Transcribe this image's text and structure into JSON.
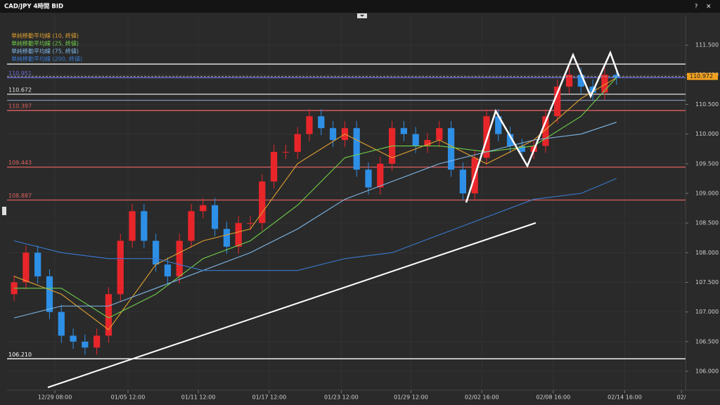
{
  "chart_data": {
    "type": "candlestick",
    "title": "CAD/JPY 4時間 BID",
    "x": [
      0,
      1,
      2,
      3,
      4,
      5,
      6,
      7,
      8,
      9,
      10,
      11,
      12,
      13,
      14,
      15,
      16,
      17,
      18,
      19,
      20,
      21,
      22,
      23,
      24,
      25,
      26,
      27,
      28,
      29,
      30,
      31,
      32,
      33,
      34,
      35,
      36,
      37,
      38,
      39,
      40,
      41,
      42,
      43,
      44,
      45,
      46,
      47,
      48,
      49,
      50,
      51
    ],
    "open": [
      107.3,
      107.5,
      108.0,
      107.6,
      107.0,
      106.6,
      106.5,
      106.4,
      106.6,
      107.3,
      108.2,
      108.7,
      108.2,
      107.8,
      107.6,
      108.2,
      108.7,
      108.8,
      108.4,
      108.1,
      108.5,
      108.5,
      109.2,
      109.7,
      109.7,
      110.0,
      110.3,
      110.1,
      109.9,
      110.1,
      109.4,
      109.1,
      109.5,
      110.1,
      110.0,
      109.8,
      109.9,
      110.1,
      109.4,
      109.0,
      109.6,
      110.3,
      110.0,
      109.8,
      109.7,
      109.8,
      110.3,
      110.8,
      111.0,
      110.8,
      110.7,
      111.0
    ],
    "high": [
      107.62,
      108.12,
      108.12,
      107.72,
      107.12,
      106.72,
      106.62,
      106.72,
      107.42,
      108.32,
      108.82,
      108.82,
      108.32,
      107.92,
      108.32,
      108.82,
      108.92,
      108.92,
      108.52,
      108.62,
      108.62,
      109.32,
      109.82,
      109.82,
      110.12,
      110.42,
      110.42,
      110.22,
      110.22,
      110.22,
      109.52,
      109.62,
      110.22,
      110.22,
      110.12,
      110.02,
      110.22,
      110.22,
      109.52,
      109.72,
      110.42,
      110.42,
      110.12,
      109.92,
      109.92,
      110.42,
      110.92,
      111.12,
      111.12,
      110.92,
      111.12,
      111.12
    ],
    "low": [
      107.18,
      107.38,
      107.48,
      106.88,
      106.48,
      106.38,
      106.28,
      106.28,
      106.48,
      107.18,
      108.08,
      108.08,
      107.68,
      107.48,
      107.48,
      108.08,
      108.58,
      108.28,
      107.98,
      107.98,
      108.38,
      108.38,
      109.08,
      109.58,
      109.58,
      109.88,
      109.98,
      109.78,
      109.78,
      109.28,
      108.98,
      108.98,
      109.38,
      109.88,
      109.68,
      109.68,
      109.78,
      109.28,
      108.88,
      108.88,
      109.48,
      109.88,
      109.68,
      109.58,
      109.58,
      109.68,
      110.18,
      110.68,
      110.68,
      110.58,
      110.58,
      110.83
    ],
    "close": [
      107.5,
      108.0,
      107.6,
      107.0,
      106.6,
      106.5,
      106.4,
      106.6,
      107.3,
      108.2,
      108.7,
      108.2,
      107.8,
      107.6,
      108.2,
      108.7,
      108.8,
      108.4,
      108.1,
      108.5,
      108.5,
      109.2,
      109.7,
      109.7,
      110.0,
      110.3,
      110.1,
      109.9,
      110.1,
      109.4,
      109.1,
      109.5,
      110.1,
      110.0,
      109.8,
      109.9,
      110.1,
      109.4,
      109.0,
      109.6,
      110.3,
      110.0,
      109.8,
      109.7,
      109.8,
      110.3,
      110.8,
      111.0,
      110.8,
      110.7,
      111.0,
      110.95
    ],
    "up_color": "#e8262a",
    "down_color": "#2e8fe6",
    "series": [
      {
        "name": "単純移動平均線 (10, 終値)",
        "color": "#e0a030",
        "x": [
          0,
          4,
          8,
          12,
          16,
          20,
          24,
          28,
          32,
          36,
          40,
          44,
          48,
          51
        ],
        "values": [
          107.6,
          107.3,
          106.7,
          107.8,
          108.2,
          108.4,
          109.5,
          110.0,
          109.6,
          109.9,
          109.5,
          109.9,
          110.6,
          110.95
        ]
      },
      {
        "name": "単純移動平均線 (25, 終値)",
        "color": "#6fcf4a",
        "x": [
          0,
          4,
          8,
          12,
          16,
          20,
          24,
          28,
          32,
          36,
          40,
          44,
          48,
          51
        ],
        "values": [
          107.4,
          107.4,
          106.9,
          107.3,
          107.9,
          108.2,
          108.8,
          109.6,
          109.8,
          109.8,
          109.7,
          109.8,
          110.3,
          110.95
        ]
      },
      {
        "name": "単純移動平均線 (75, 終値)",
        "color": "#7fb8e8",
        "x": [
          0,
          4,
          8,
          12,
          16,
          20,
          24,
          28,
          32,
          36,
          40,
          44,
          48,
          51
        ],
        "values": [
          106.9,
          107.1,
          107.1,
          107.4,
          107.7,
          108.0,
          108.4,
          108.9,
          109.2,
          109.5,
          109.7,
          109.9,
          110.0,
          110.2
        ]
      },
      {
        "name": "単純移動平均線 (200, 終値)",
        "color": "#3a7ad0",
        "x": [
          0,
          4,
          8,
          12,
          16,
          20,
          24,
          28,
          32,
          36,
          40,
          44,
          48,
          51
        ],
        "values": [
          108.2,
          108.0,
          107.9,
          107.9,
          107.7,
          107.7,
          107.7,
          107.9,
          108.0,
          108.3,
          108.6,
          108.9,
          109.0,
          109.25
        ]
      }
    ],
    "levels": [
      {
        "value": 111.18,
        "color": "#ffffff"
      },
      {
        "value": 110.951,
        "label": "110.951",
        "color": "#6a6ad8"
      },
      {
        "value": 110.672,
        "label": "110.672",
        "color": "#e0e0e0"
      },
      {
        "value": 110.57,
        "color": "#8090b0"
      },
      {
        "value": 110.397,
        "label": "110.397",
        "color": "#e06060"
      },
      {
        "value": 109.443,
        "label": "109.443",
        "color": "#e06060"
      },
      {
        "value": 108.887,
        "label": "108.887",
        "color": "#e06060"
      },
      {
        "value": 106.21,
        "label": "106.210",
        "color": "#ffffff"
      }
    ],
    "last_price": 110.972,
    "xlim": [
      -0.6,
      56.85
    ],
    "xticks": [
      {
        "value": 3.45,
        "label": "12/29 08:00"
      },
      {
        "value": 9.64,
        "label": "01/05 12:00"
      },
      {
        "value": 15.6,
        "label": "01/11 12:00"
      },
      {
        "value": 21.6,
        "label": "01/17 12:00"
      },
      {
        "value": 27.7,
        "label": "01/23 12:00"
      },
      {
        "value": 33.6,
        "label": "01/29 12:00"
      },
      {
        "value": 39.6,
        "label": "02/02 16:00"
      },
      {
        "value": 45.65,
        "label": "02/08 16:00"
      },
      {
        "value": 51.7,
        "label": "02/14 16:00"
      },
      {
        "value": 56.5,
        "label": "02/"
      }
    ],
    "ylim": [
      105.68,
      112.0
    ],
    "yticks": [
      {
        "value": 111.5,
        "label": "111.500"
      },
      {
        "value": 111.0,
        "label": "111.000"
      },
      {
        "value": 110.5,
        "label": "110.500"
      },
      {
        "value": 110.0,
        "label": "110.000"
      },
      {
        "value": 109.5,
        "label": "109.500"
      },
      {
        "value": 109.0,
        "label": "109.000"
      },
      {
        "value": 108.5,
        "label": "108.500"
      },
      {
        "value": 108.0,
        "label": "108.000"
      },
      {
        "value": 107.5,
        "label": "107.500"
      },
      {
        "value": 107.0,
        "label": "107.000"
      },
      {
        "value": 106.5,
        "label": "106.500"
      },
      {
        "value": 106.0,
        "label": "106.000"
      }
    ],
    "grid": true
  }
}
